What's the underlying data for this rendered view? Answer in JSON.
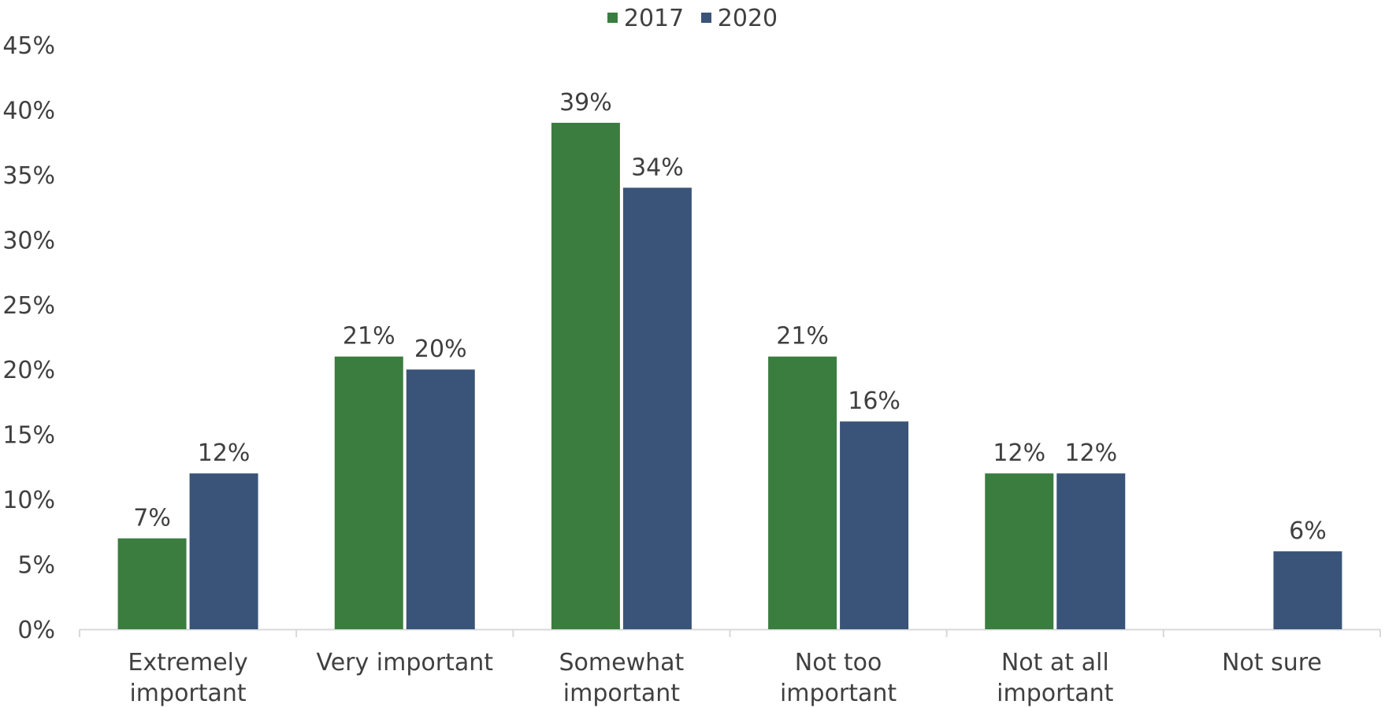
{
  "chart_data": {
    "type": "bar",
    "categories": [
      [
        "Extremely",
        "important"
      ],
      [
        "Very important"
      ],
      [
        "Somewhat",
        "important"
      ],
      [
        "Not too",
        "important"
      ],
      [
        "Not at all",
        "important"
      ],
      [
        "Not sure"
      ]
    ],
    "series": [
      {
        "name": "2017",
        "color": "#3a7d3f",
        "values": [
          7,
          21,
          39,
          21,
          12,
          null
        ],
        "labels": [
          "7%",
          "21%",
          "39%",
          "21%",
          "12%",
          ""
        ]
      },
      {
        "name": "2020",
        "color": "#3a5479",
        "values": [
          12,
          20,
          34,
          16,
          12,
          6
        ],
        "labels": [
          "12%",
          "20%",
          "34%",
          "16%",
          "12%",
          "6%"
        ]
      }
    ],
    "ylim": [
      0,
      45
    ],
    "yticks": [
      "0%",
      "5%",
      "10%",
      "15%",
      "20%",
      "25%",
      "30%",
      "35%",
      "40%",
      "45%"
    ],
    "legend_position": "top-center",
    "grid": false
  }
}
